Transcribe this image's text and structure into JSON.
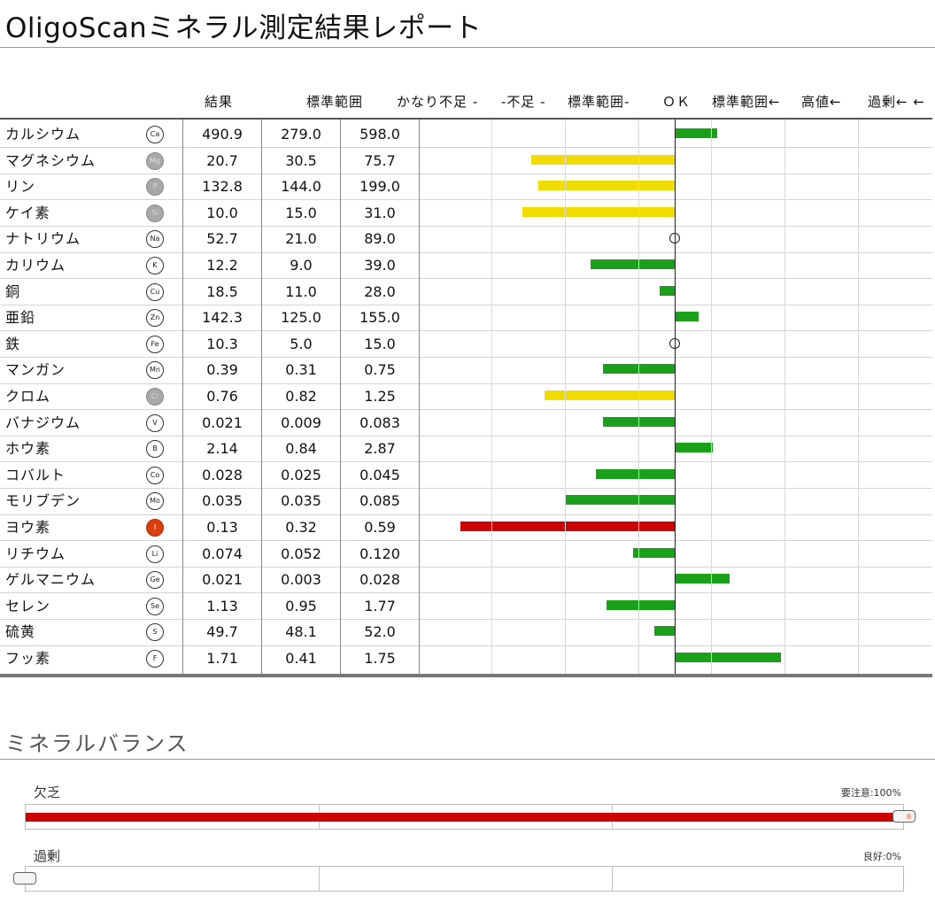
{
  "title": "OligoScanミネラル測定結果レポート",
  "headers": {
    "result": "結果",
    "standard_range": "標準範囲",
    "very_low": "かなり不足 -",
    "low": "-不足 -",
    "range_low": "標準範囲-",
    "ok": "ＯＫ",
    "range_high": "標準範囲←",
    "high": "高値←",
    "excess": "過剰← ←"
  },
  "rows": [
    {
      "name": "カルシウム",
      "symbol": "Ca",
      "result": "490.9",
      "min": "279.0",
      "max": "598.0",
      "style": "plain"
    },
    {
      "name": "マグネシウム",
      "symbol": "Mg",
      "result": "20.7",
      "min": "30.5",
      "max": "75.7",
      "style": "gray"
    },
    {
      "name": "リン",
      "symbol": "P",
      "result": "132.8",
      "min": "144.0",
      "max": "199.0",
      "style": "gray"
    },
    {
      "name": "ケイ素",
      "symbol": "Si",
      "result": "10.0",
      "min": "15.0",
      "max": "31.0",
      "style": "gray"
    },
    {
      "name": "ナトリウム",
      "symbol": "Na",
      "result": "52.7",
      "min": "21.0",
      "max": "89.0",
      "style": "plain"
    },
    {
      "name": "カリウム",
      "symbol": "K",
      "result": "12.2",
      "min": "9.0",
      "max": "39.0",
      "style": "plain"
    },
    {
      "name": "銅",
      "symbol": "Cu",
      "result": "18.5",
      "min": "11.0",
      "max": "28.0",
      "style": "plain"
    },
    {
      "name": "亜鉛",
      "symbol": "Zn",
      "result": "142.3",
      "min": "125.0",
      "max": "155.0",
      "style": "plain"
    },
    {
      "name": "鉄",
      "symbol": "Fe",
      "result": "10.3",
      "min": "5.0",
      "max": "15.0",
      "style": "plain"
    },
    {
      "name": "マンガン",
      "symbol": "Mn",
      "result": "0.39",
      "min": "0.31",
      "max": "0.75",
      "style": "plain"
    },
    {
      "name": "クロム",
      "symbol": "Cr",
      "result": "0.76",
      "min": "0.82",
      "max": "1.25",
      "style": "gray"
    },
    {
      "name": "バナジウム",
      "symbol": "V",
      "result": "0.021",
      "min": "0.009",
      "max": "0.083",
      "style": "plain"
    },
    {
      "name": "ホウ素",
      "symbol": "B",
      "result": "2.14",
      "min": "0.84",
      "max": "2.87",
      "style": "plain"
    },
    {
      "name": "コバルト",
      "symbol": "Co",
      "result": "0.028",
      "min": "0.025",
      "max": "0.045",
      "style": "plain"
    },
    {
      "name": "モリブデン",
      "symbol": "Mo",
      "result": "0.035",
      "min": "0.035",
      "max": "0.085",
      "style": "plain"
    },
    {
      "name": "ヨウ素",
      "symbol": "I",
      "result": "0.13",
      "min": "0.32",
      "max": "0.59",
      "style": "red"
    },
    {
      "name": "リチウム",
      "symbol": "Li",
      "result": "0.074",
      "min": "0.052",
      "max": "0.120",
      "style": "plain"
    },
    {
      "name": "ゲルマニウム",
      "symbol": "Ge",
      "result": "0.021",
      "min": "0.003",
      "max": "0.028",
      "style": "plain"
    },
    {
      "name": "セレン",
      "symbol": "Se",
      "result": "1.13",
      "min": "0.95",
      "max": "1.77",
      "style": "plain"
    },
    {
      "name": "硫黄",
      "symbol": "S",
      "result": "49.7",
      "min": "48.1",
      "max": "52.0",
      "style": "plain"
    },
    {
      "name": "フッ素",
      "symbol": "F",
      "result": "1.71",
      "min": "0.41",
      "max": "1.75",
      "style": "plain"
    }
  ],
  "chart_data": {
    "type": "bar",
    "orientation": "horizontal",
    "baseline": "OK",
    "value_scale": "grid divisions relative to the OK line (negative = toward 不足, positive = toward 過剰)",
    "categories": [
      "カルシウム",
      "マグネシウム",
      "リン",
      "ケイ素",
      "ナトリウム",
      "カリウム",
      "銅",
      "亜鉛",
      "鉄",
      "マンガン",
      "クロム",
      "バナジウム",
      "ホウ素",
      "コバルト",
      "モリブデン",
      "ヨウ素",
      "リチウム",
      "ゲルマニウム",
      "セレン",
      "硫黄",
      "フッ素"
    ],
    "values": [
      0.57,
      -1.95,
      -1.86,
      -2.07,
      0,
      -1.15,
      -0.21,
      0.31,
      0,
      -0.98,
      -1.77,
      -0.98,
      0.51,
      -1.07,
      -1.49,
      -2.91,
      -0.57,
      0.73,
      -0.93,
      -0.28,
      1.43
    ],
    "colors": [
      "#1aa01a",
      "#f0dc00",
      "#f0dc00",
      "#f0dc00",
      "marker",
      "#1aa01a",
      "#1aa01a",
      "#1aa01a",
      "marker",
      "#1aa01a",
      "#f0dc00",
      "#1aa01a",
      "#1aa01a",
      "#1aa01a",
      "#1aa01a",
      "#cc0000",
      "#1aa01a",
      "#1aa01a",
      "#1aa01a",
      "#1aa01a",
      "#1aa01a"
    ],
    "xlim": [
      -3.5,
      3.5
    ]
  },
  "balance": {
    "title": "ミネラルバランス",
    "deficiency": {
      "label": "欠乏",
      "note": "要注意:100%",
      "percent": 100
    },
    "excess": {
      "label": "過剰",
      "note": "良好:0%",
      "percent": 0
    },
    "bar_color": "#cc0000"
  }
}
